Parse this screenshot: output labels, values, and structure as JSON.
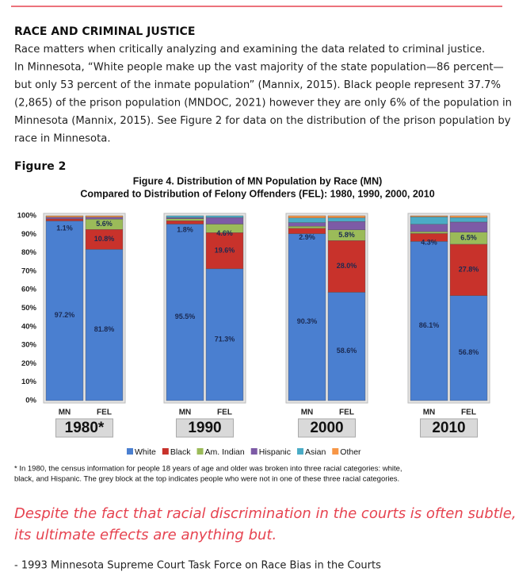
{
  "section": {
    "heading": "RACE AND CRIMINAL JUSTICE",
    "lines": [
      "Race matters when critically analyzing and examining the data related to criminal justice.",
      "In Minnesota, “White people make up the vast majority of the state population—86 percent—",
      "but only 53 percent of the inmate population” (Mannix, 2015). Black people represent 37.7%",
      "(2,865) of the prison population (MNDOC, 2021) however they are only 6% of the population in",
      "Minnesota (Mannix, 2015). See Figure 2 for data on the distribution of the prison population by",
      "race in Minnesota."
    ],
    "figure_label": "Figure 2"
  },
  "chart_data": {
    "type": "stacked-bar",
    "title": [
      "Figure 4.  Distribution of MN Population by Race (MN)",
      "Compared to Distribution of Felony Offenders (FEL): 1980, 1990, 2000, 2010"
    ],
    "categories": [
      "MN",
      "FEL",
      "MN",
      "FEL",
      "MN",
      "FEL",
      "MN",
      "FEL"
    ],
    "groups": [
      "1980*",
      "1990",
      "2000",
      "2010"
    ],
    "series": [
      {
        "name": "White",
        "color": "#4a7fd0",
        "values": [
          97.2,
          81.8,
          95.5,
          71.3,
          90.3,
          58.6,
          86.1,
          56.8
        ],
        "value_labels": [
          "97.2%",
          "81.8%",
          "95.5%",
          "71.3%",
          "90.3%",
          "58.6%",
          "86.1%",
          "56.8%"
        ]
      },
      {
        "name": "Black",
        "color": "#c8322b",
        "values": [
          1.1,
          10.8,
          1.8,
          19.6,
          2.9,
          28.0,
          4.3,
          27.8
        ],
        "value_labels": [
          "1.1%",
          "10.8%",
          "1.8%",
          "19.6%",
          "2.9%",
          "28.0%",
          "4.3%",
          "27.8%"
        ]
      },
      {
        "name": "Am. Indian",
        "color": "#9bbb59",
        "values": [
          0,
          5.6,
          1.1,
          4.6,
          1.1,
          5.8,
          1.0,
          6.5
        ],
        "value_labels": [
          null,
          "5.6%",
          null,
          "4.6%",
          null,
          "5.8%",
          null,
          "6.5%"
        ]
      },
      {
        "name": "Hispanic",
        "color": "#7d5ba6",
        "values": [
          0.9,
          1.0,
          0.6,
          3.5,
          2.0,
          4.5,
          4.0,
          5.5
        ]
      },
      {
        "name": "Asian",
        "color": "#4bacc6",
        "values": [
          0,
          0,
          1.0,
          1.0,
          2.5,
          2.0,
          4.0,
          2.4
        ]
      },
      {
        "name": "Other",
        "color": "#f79646",
        "values": [
          0.8,
          0.8,
          0,
          0,
          1.2,
          1.1,
          0.6,
          1.0
        ]
      }
    ],
    "ylim": [
      0,
      100
    ],
    "yticks": [
      {
        "value": 0,
        "label": "0%"
      },
      {
        "value": 10,
        "label": "10%"
      },
      {
        "value": 20,
        "label": "20%"
      },
      {
        "value": 30,
        "label": "30%"
      },
      {
        "value": 40,
        "label": "40%"
      },
      {
        "value": 50,
        "label": "50%"
      },
      {
        "value": 60,
        "label": "60%"
      },
      {
        "value": 70,
        "label": "70%"
      },
      {
        "value": 80,
        "label": "80%"
      },
      {
        "value": 90,
        "label": "90%"
      },
      {
        "value": 100,
        "label": "100%"
      }
    ],
    "grid": false,
    "footnote": [
      "* In 1980, the census information for people 18 years of age and older was broken into three racial categories: white,",
      "black, and Hispanic. The grey block at the top indicates people who were not in one of these three racial categories."
    ]
  },
  "quote": {
    "lines": [
      "Despite the fact that racial discrimination in the courts is often subtle,",
      "its ultimate effects are anything but."
    ],
    "source": "- 1993 Minnesota Supreme Court Task Force on Race Bias in the Courts"
  }
}
